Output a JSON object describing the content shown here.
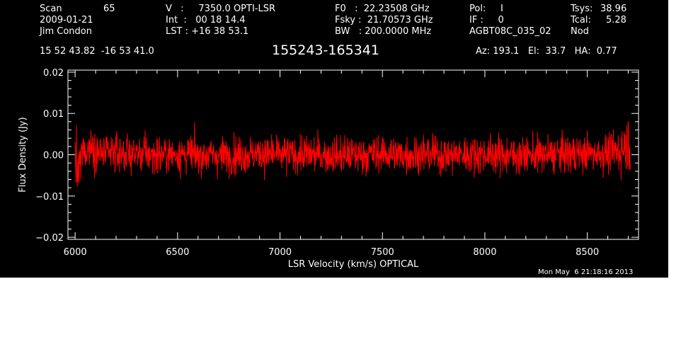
{
  "header": {
    "col1": {
      "scan_label": "Scan",
      "scan_number": "65",
      "date": "2009-01-21",
      "observer": "Jim Condon"
    },
    "col2": {
      "velocity": "V   :     7350.0 OPTI-LSR",
      "integration": "Int  :   00 18 14.4",
      "lst": "LST : +16 38 53.1"
    },
    "col3": {
      "f0": "F0   :  22.23508 GHz",
      "fsky": "Fsky :  21.70573 GHz",
      "bw": "BW   : 200.0000 MHz"
    },
    "col4": {
      "pol": "Pol:     I",
      "if": "IF :     0",
      "project": "AGBT08C_035_02"
    },
    "col5": {
      "tsys_label": "Tsys:",
      "tsys_value": "38.96",
      "tcal_label": "Tcal:",
      "tcal_value": "5.28",
      "mode": "Nod"
    },
    "coords": "15 52 43.82  -16 53 41.0",
    "source_name": "155243-165341",
    "pointing": "Az: 193.1   El:  33.7   HA:  0.77",
    "timestamp": "Mon May  6 21:18:16 2013"
  },
  "colors": {
    "background": "#000000",
    "axes": "#ffffff",
    "spectrum": "#ff0000",
    "page": "#ffffff"
  },
  "chart_data": {
    "type": "line",
    "title": "155243-165341",
    "xlabel": "LSR Velocity (km/s) OPTICAL",
    "ylabel": "Flux Density (Jy)",
    "xlim": [
      5965,
      8750
    ],
    "ylim": [
      -0.0205,
      0.0205
    ],
    "x_ticks": [
      6000,
      6500,
      7000,
      7500,
      8000,
      8500
    ],
    "x_tick_labels": [
      "6000",
      "6500",
      "7000",
      "7500",
      "8000",
      "8500"
    ],
    "y_ticks": [
      -0.02,
      -0.01,
      0.0,
      0.01,
      0.02
    ],
    "y_tick_labels": [
      "−0.02",
      "−0.01",
      "0.00",
      "0.01",
      "0.02"
    ],
    "grid": false,
    "series": [
      {
        "color": "#ff0000",
        "x": [
          6000,
          6010,
          6020,
          6030,
          6050,
          6080,
          6100,
          6150,
          6200,
          6300,
          6400,
          6500,
          6600,
          6700,
          6800,
          6900,
          7000,
          7100,
          7200,
          7300,
          7400,
          7500,
          7600,
          7700,
          7800,
          7900,
          8000,
          8100,
          8200,
          8300,
          8400,
          8500,
          8600,
          8650,
          8680,
          8700,
          8710
        ],
        "y": [
          0.0,
          -0.005,
          -0.004,
          0.0,
          0.001,
          0.002,
          0.001,
          0.0,
          0.0005,
          0.0003,
          0.0,
          0.0002,
          0.0,
          -0.0002,
          0.0,
          0.0002,
          0.0,
          0.0001,
          0.0,
          -0.0002,
          0.0,
          0.0003,
          0.0,
          0.0001,
          -0.0001,
          0.0,
          0.0002,
          0.0,
          -0.0001,
          0.0,
          0.0002,
          0.0003,
          0.0004,
          0.001,
          0.002,
          0.003,
          0.0025
        ],
        "noise_rms": 0.0035
      }
    ]
  }
}
